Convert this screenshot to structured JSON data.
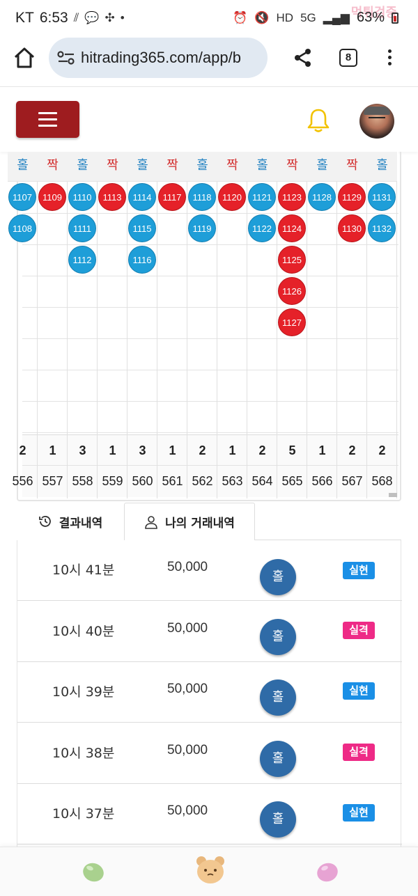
{
  "status_bar": {
    "carrier": "KT",
    "time": "6:53",
    "network_badge": "5G",
    "battery": "63%",
    "watermark": "먹튀검증"
  },
  "browser": {
    "url": "hitrading365.com/app/b",
    "tab_count": "8"
  },
  "grid": {
    "headers": [
      {
        "label": "홀",
        "color": "#2a86c4"
      },
      {
        "label": "짝",
        "color": "#d32f2f"
      },
      {
        "label": "홀",
        "color": "#2a86c4"
      },
      {
        "label": "짝",
        "color": "#d32f2f"
      },
      {
        "label": "홀",
        "color": "#2a86c4"
      },
      {
        "label": "짝",
        "color": "#d32f2f"
      },
      {
        "label": "홀",
        "color": "#2a86c4"
      },
      {
        "label": "짝",
        "color": "#d32f2f"
      },
      {
        "label": "홀",
        "color": "#2a86c4"
      },
      {
        "label": "짝",
        "color": "#d32f2f"
      },
      {
        "label": "홀",
        "color": "#2a86c4"
      },
      {
        "label": "짝",
        "color": "#d32f2f"
      },
      {
        "label": "홀",
        "color": "#2a86c4"
      }
    ],
    "columns": [
      {
        "balls": [
          "1107",
          "1108"
        ],
        "color": "blue"
      },
      {
        "balls": [
          "1109"
        ],
        "color": "red"
      },
      {
        "balls": [
          "1110",
          "1111",
          "1112"
        ],
        "color": "blue"
      },
      {
        "balls": [
          "1113"
        ],
        "color": "red"
      },
      {
        "balls": [
          "1114",
          "1115",
          "1116"
        ],
        "color": "blue"
      },
      {
        "balls": [
          "1117"
        ],
        "color": "red"
      },
      {
        "balls": [
          "1118",
          "1119"
        ],
        "color": "blue"
      },
      {
        "balls": [
          "1120"
        ],
        "color": "red"
      },
      {
        "balls": [
          "1121",
          "1122"
        ],
        "color": "blue"
      },
      {
        "balls": [
          "1123",
          "1124",
          "1125",
          "1126",
          "1127"
        ],
        "color": "red"
      },
      {
        "balls": [
          "1128"
        ],
        "color": "blue"
      },
      {
        "balls": [
          "1129",
          "1130"
        ],
        "color": "red"
      },
      {
        "balls": [
          "1131",
          "1132"
        ],
        "color": "blue"
      }
    ],
    "counts": [
      "2",
      "1",
      "3",
      "1",
      "3",
      "1",
      "2",
      "1",
      "2",
      "5",
      "1",
      "2",
      "2"
    ],
    "round_numbers": [
      "556",
      "557",
      "558",
      "559",
      "560",
      "561",
      "562",
      "563",
      "564",
      "565",
      "566",
      "567",
      "568"
    ]
  },
  "tabs": {
    "results": "결과내역",
    "my_trades": "나의 거래내역"
  },
  "trades": [
    {
      "time": "10시 41분",
      "amount": "50,000",
      "pick": "홀",
      "result": "실현",
      "result_type": "win"
    },
    {
      "time": "10시 40분",
      "amount": "50,000",
      "pick": "홀",
      "result": "실격",
      "result_type": "lose"
    },
    {
      "time": "10시 39분",
      "amount": "50,000",
      "pick": "홀",
      "result": "실현",
      "result_type": "win"
    },
    {
      "time": "10시 38분",
      "amount": "50,000",
      "pick": "홀",
      "result": "실격",
      "result_type": "lose"
    },
    {
      "time": "10시 37분",
      "amount": "50,000",
      "pick": "홀",
      "result": "실현",
      "result_type": "win"
    }
  ],
  "colors": {
    "brand_red": "#9e1c1f",
    "odd_blue": "#1e9ed8",
    "even_red": "#e52129",
    "pick_blue": "#2f6ba7",
    "win_badge": "#1a8fe6",
    "lose_badge": "#ee2a86"
  }
}
